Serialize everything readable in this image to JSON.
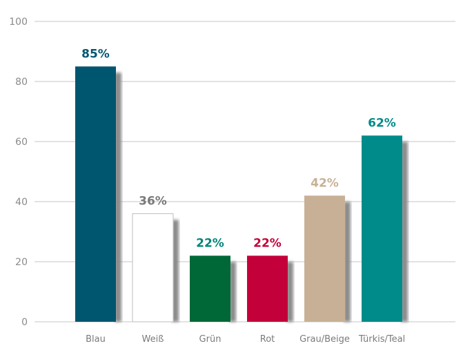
{
  "chart_data": {
    "type": "bar",
    "title": "",
    "xlabel": "",
    "ylabel": "",
    "ylim": [
      0,
      100
    ],
    "yticks": [
      0,
      20,
      40,
      60,
      80,
      100
    ],
    "grid": true,
    "categories": [
      "Blau",
      "Weiß",
      "Grün",
      "Rot",
      "Grau/Beige",
      "Türkis/Teal"
    ],
    "values": [
      85,
      36,
      22,
      22,
      42,
      62
    ],
    "data_labels": [
      "85%",
      "36%",
      "22%",
      "22%",
      "42%",
      "62%"
    ],
    "bar_colors": [
      "#00566f",
      "#ffffff",
      "#006837",
      "#c4003a",
      "#c8b096",
      "#008b8b"
    ],
    "label_colors": [
      "#00566f",
      "#7a7a7a",
      "#00857a",
      "#c4003a",
      "#c8b096",
      "#008b8b"
    ]
  }
}
